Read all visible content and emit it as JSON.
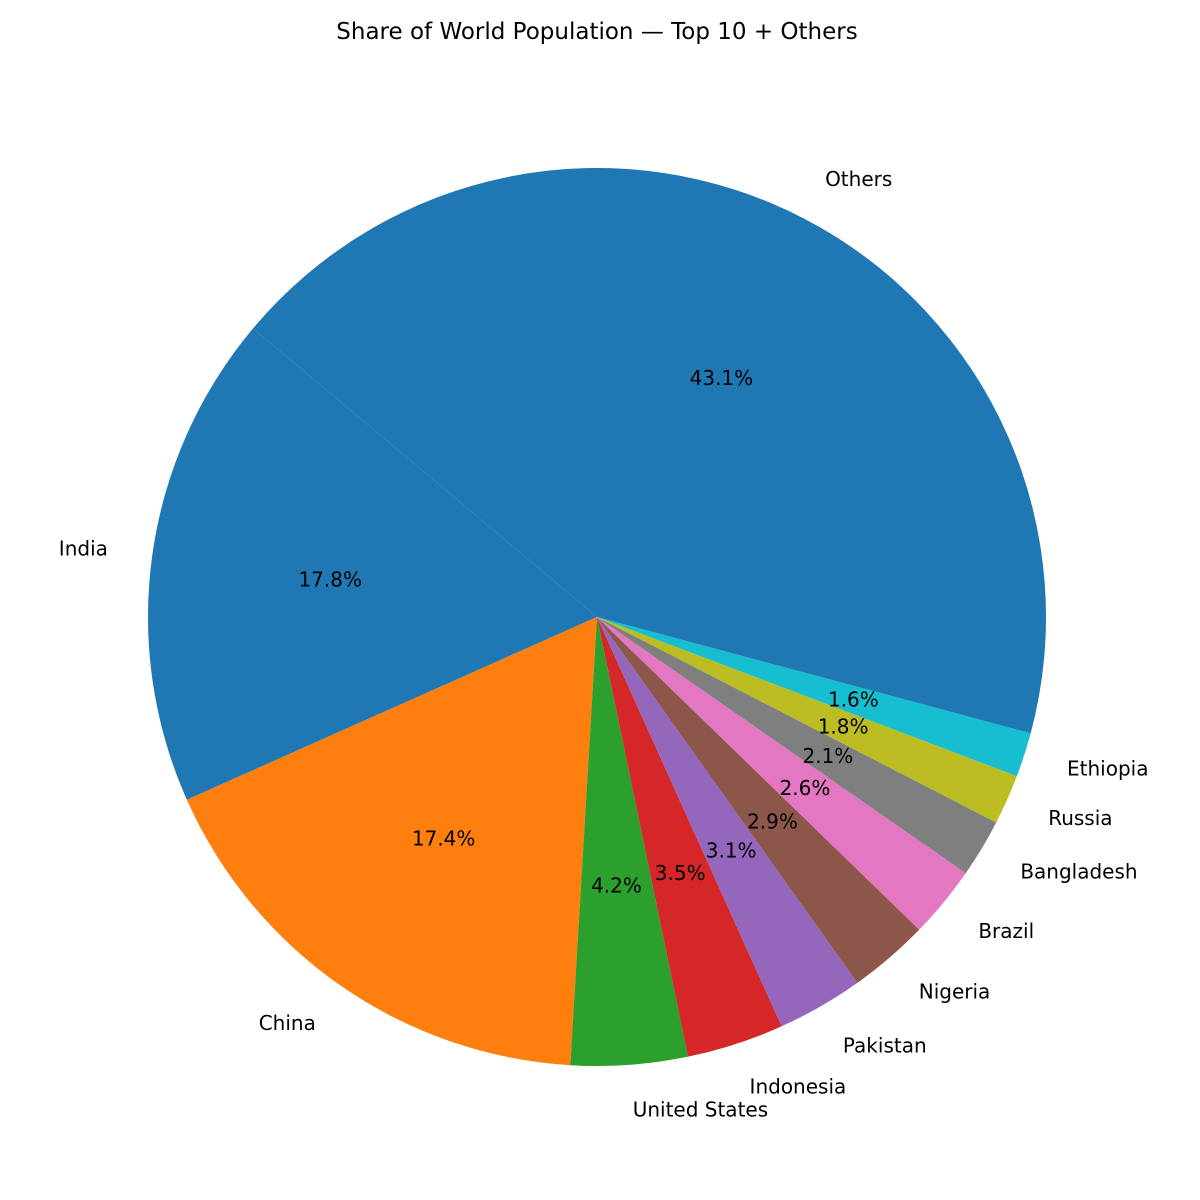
{
  "chart_data": {
    "type": "pie",
    "title": "Share of World Population — Top 10 + Others",
    "start_angle_deg": 140,
    "direction": "counterclockwise",
    "slices": [
      {
        "label": "India",
        "value": 17.8,
        "pct_label": "17.8%",
        "color": "#1f77b4"
      },
      {
        "label": "China",
        "value": 17.4,
        "pct_label": "17.4%",
        "color": "#ff7f0e"
      },
      {
        "label": "United States",
        "value": 4.2,
        "pct_label": "4.2%",
        "color": "#2ca02c"
      },
      {
        "label": "Indonesia",
        "value": 3.5,
        "pct_label": "3.5%",
        "color": "#d62728"
      },
      {
        "label": "Pakistan",
        "value": 3.1,
        "pct_label": "3.1%",
        "color": "#9467bd"
      },
      {
        "label": "Nigeria",
        "value": 2.9,
        "pct_label": "2.9%",
        "color": "#8c564b"
      },
      {
        "label": "Brazil",
        "value": 2.6,
        "pct_label": "2.6%",
        "color": "#e377c2"
      },
      {
        "label": "Bangladesh",
        "value": 2.1,
        "pct_label": "2.1%",
        "color": "#7f7f7f"
      },
      {
        "label": "Russia",
        "value": 1.8,
        "pct_label": "1.8%",
        "color": "#bcbd22"
      },
      {
        "label": "Ethiopia",
        "value": 1.6,
        "pct_label": "1.6%",
        "color": "#17becf"
      },
      {
        "label": "Others",
        "value": 43.1,
        "pct_label": "43.1%",
        "color": "#1f77b4"
      }
    ]
  }
}
